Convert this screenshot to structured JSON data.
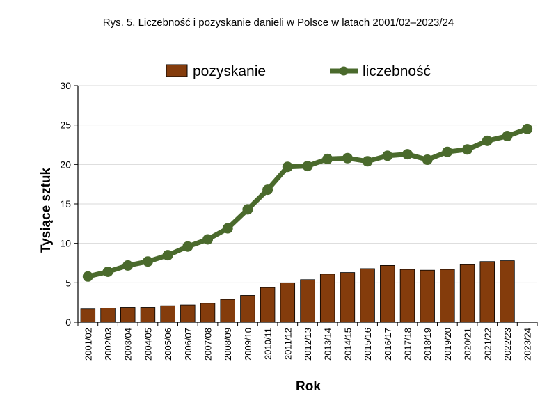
{
  "chart_data": {
    "type": "bar",
    "title": "Rys. 5. Liczebność i pozyskanie danieli w Polsce w latach 2001/02–2023/24",
    "xlabel": "Rok",
    "ylabel": "Tysiące sztuk",
    "ylim": [
      0,
      30
    ],
    "yticks": [
      0,
      5,
      10,
      15,
      20,
      25,
      30
    ],
    "legend_position": "top-center",
    "grid": "horizontal",
    "categories": [
      "2001/02",
      "2002/03",
      "2003/04",
      "2004/05",
      "2005/06",
      "2006/07",
      "2007/08",
      "2008/09",
      "2009/10",
      "2010/11",
      "2011/12",
      "2012/13",
      "2013/14",
      "2014/15",
      "2015/16",
      "2016/17",
      "2017/18",
      "2018/19",
      "2019/20",
      "2020/21",
      "2021/22",
      "2022/23",
      "2023/24"
    ],
    "series": [
      {
        "name": "pozyskanie",
        "type": "bar",
        "color": "#843c0c",
        "values": [
          1.7,
          1.8,
          1.9,
          1.9,
          2.1,
          2.2,
          2.4,
          2.9,
          3.4,
          4.4,
          5.0,
          5.4,
          6.1,
          6.3,
          6.8,
          7.2,
          6.7,
          6.6,
          6.7,
          7.3,
          7.7,
          7.8,
          null
        ]
      },
      {
        "name": "liczebność",
        "type": "line",
        "color": "#4a6a2c",
        "values": [
          5.8,
          6.4,
          7.2,
          7.7,
          8.5,
          9.6,
          10.5,
          11.9,
          14.3,
          16.8,
          19.7,
          19.8,
          20.7,
          20.8,
          20.4,
          21.1,
          21.3,
          20.6,
          21.6,
          21.9,
          23.0,
          23.6,
          24.5
        ]
      }
    ]
  }
}
